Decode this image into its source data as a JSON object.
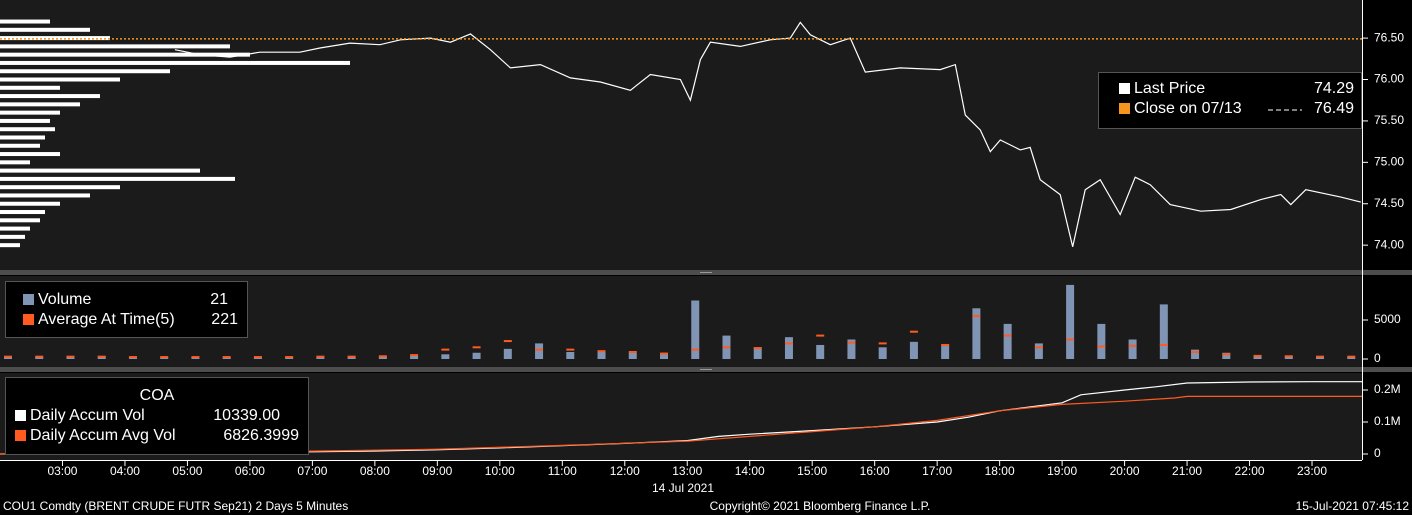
{
  "chart_data": [
    {
      "type": "line",
      "xlim": [
        2,
        23.8
      ],
      "ylim": [
        73.7,
        76.96
      ],
      "yticks": [
        {
          "value": 76.5,
          "label": "76.50"
        },
        {
          "value": 76,
          "label": "76.00"
        },
        {
          "value": 75.5,
          "label": "75.50"
        },
        {
          "value": 75,
          "label": "75.00"
        },
        {
          "value": 74.5,
          "label": "74.50"
        },
        {
          "value": 74,
          "label": "74.00"
        }
      ],
      "series": [
        {
          "name": "Last Price",
          "color": "#ffffff",
          "legend_value": 74.29,
          "x": [
            4.8,
            5.2,
            5.68,
            6.16,
            6.8,
            7.12,
            7.6,
            8.08,
            8.41,
            8.89,
            9.21,
            9.53,
            9.85,
            10.17,
            10.65,
            11.13,
            11.61,
            12.09,
            12.41,
            12.89,
            13.05,
            13.21,
            13.37,
            13.85,
            14.33,
            14.65,
            14.81,
            14.97,
            15.29,
            15.61,
            15.85,
            16.41,
            17.05,
            17.29,
            17.45,
            17.69,
            17.85,
            18.01,
            18.33,
            18.49,
            18.65,
            18.97,
            19.17,
            19.37,
            19.61,
            19.93,
            20.17,
            20.41,
            20.73,
            21.22,
            21.7,
            22.18,
            22.5,
            22.66,
            22.9,
            23.46,
            23.78
          ],
          "values": [
            76.36,
            76.3,
            76.27,
            76.33,
            76.33,
            76.38,
            76.44,
            76.42,
            76.48,
            76.5,
            76.45,
            76.55,
            76.36,
            76.14,
            76.18,
            76.02,
            75.97,
            75.87,
            76.06,
            76.0,
            75.75,
            76.24,
            76.45,
            76.4,
            76.48,
            76.5,
            76.69,
            76.54,
            76.42,
            76.5,
            76.09,
            76.14,
            76.12,
            76.18,
            75.57,
            75.39,
            75.13,
            75.27,
            75.15,
            75.18,
            74.79,
            74.61,
            73.98,
            74.67,
            74.79,
            74.37,
            74.82,
            74.73,
            74.49,
            74.41,
            74.43,
            74.55,
            74.61,
            74.49,
            74.67,
            74.58,
            74.52
          ]
        },
        {
          "name": "Close on 07/13",
          "color": "#f7941d",
          "values": [
            76.49
          ]
        }
      ],
      "profile": {
        "color": "#ffffff",
        "prices": [
          76.7,
          76.6,
          76.5,
          76.4,
          76.3,
          76.2,
          76.1,
          76.0,
          75.9,
          75.8,
          75.7,
          75.6,
          75.5,
          75.4,
          75.3,
          75.2,
          75.1,
          75.0,
          74.9,
          74.8,
          74.7,
          74.6,
          74.5,
          74.4,
          74.3,
          74.2,
          74.1,
          74.0
        ],
        "values": [
          50,
          90,
          110,
          230,
          250,
          350,
          170,
          120,
          60,
          100,
          80,
          60,
          50,
          55,
          45,
          40,
          60,
          30,
          200,
          235,
          120,
          90,
          60,
          45,
          40,
          30,
          25,
          20
        ]
      }
    },
    {
      "type": "bar",
      "xlim": [
        2,
        23.8
      ],
      "ylim": [
        0,
        10000
      ],
      "yticks": [
        5000,
        0
      ],
      "x": [
        2,
        2.5,
        3,
        3.5,
        4,
        4.5,
        5,
        5.5,
        6,
        6.5,
        7,
        7.5,
        8,
        8.5,
        9,
        9.5,
        10,
        10.5,
        11,
        11.5,
        12,
        12.5,
        13,
        13.5,
        14,
        14.5,
        15,
        15.5,
        16,
        16.5,
        17,
        17.5,
        18,
        18.5,
        19,
        19.5,
        20,
        20.5,
        21,
        21.5,
        22,
        22.5,
        23,
        23.5
      ],
      "series": [
        {
          "name": "Volume",
          "color": "#8094b4",
          "legend_value": 21,
          "values": [
            200,
            250,
            300,
            350,
            300,
            250,
            300,
            250,
            250,
            250,
            300,
            300,
            350,
            400,
            600,
            800,
            1300,
            2000,
            900,
            1100,
            800,
            700,
            7500,
            3000,
            1500,
            2800,
            1800,
            2500,
            1500,
            2200,
            1800,
            6500,
            4500,
            2000,
            9500,
            4500,
            2500,
            7000,
            1200,
            800,
            500,
            400,
            300,
            200
          ]
        },
        {
          "name": "Average At Time(5)",
          "color": "#ff5a1f",
          "legend_value": 221,
          "values": [
            300,
            300,
            300,
            300,
            250,
            250,
            250,
            250,
            250,
            250,
            300,
            300,
            350,
            500,
            1200,
            1500,
            2300,
            1200,
            1200,
            1000,
            900,
            700,
            1200,
            1500,
            1400,
            2000,
            3000,
            2100,
            2000,
            3500,
            1800,
            5500,
            3000,
            1500,
            2500,
            1600,
            1700,
            1800,
            900,
            600,
            400,
            350,
            300,
            300
          ]
        }
      ]
    },
    {
      "type": "line",
      "title": "COA",
      "xlim": [
        2,
        23.8
      ],
      "ylim": [
        0,
        225000
      ],
      "yticks": [
        {
          "value": 200000,
          "label": "0.2M"
        },
        {
          "value": 100000,
          "label": "0.1M"
        },
        0
      ],
      "xticks": [
        {
          "value": 3,
          "label": "03:00"
        },
        {
          "value": 4,
          "label": "04:00"
        },
        {
          "value": 5,
          "label": "05:00"
        },
        {
          "value": 6,
          "label": "06:00"
        },
        {
          "value": 7,
          "label": "07:00"
        },
        {
          "value": 8,
          "label": "08:00"
        },
        {
          "value": 9,
          "label": "09:00"
        },
        {
          "value": 10,
          "label": "10:00"
        },
        {
          "value": 11,
          "label": "11:00"
        },
        {
          "value": 12,
          "label": "12:00"
        },
        {
          "value": 13,
          "label": "13:00"
        },
        {
          "value": 14,
          "label": "14:00"
        },
        {
          "value": 15,
          "label": "15:00"
        },
        {
          "value": 16,
          "label": "16:00"
        },
        {
          "value": 17,
          "label": "17:00"
        },
        {
          "value": 18,
          "label": "18:00"
        },
        {
          "value": 19,
          "label": "19:00"
        },
        {
          "value": 20,
          "label": "20:00"
        },
        {
          "value": 21,
          "label": "21:00"
        },
        {
          "value": 22,
          "label": "22:00"
        },
        {
          "value": 23,
          "label": "23:00"
        }
      ],
      "x_label": "14 Jul 2021",
      "series": [
        {
          "name": "Daily Accum Vol",
          "color": "#ffffff",
          "legend_value": "10339.00",
          "x": [
            2,
            3,
            4,
            5,
            6,
            7,
            8,
            9,
            10,
            11,
            12,
            13,
            13.5,
            14,
            15,
            16,
            17,
            17.5,
            18,
            19,
            19.3,
            20,
            20.5,
            21,
            22,
            23,
            23.8
          ],
          "values": [
            0,
            1000,
            2500,
            4000,
            5500,
            7000,
            9500,
            13000,
            19000,
            26000,
            33000,
            42000,
            55000,
            62000,
            73000,
            85000,
            100000,
            115000,
            135000,
            160000,
            185000,
            200000,
            210000,
            222000,
            225000,
            226000,
            226000
          ]
        },
        {
          "name": "Daily Accum Avg Vol",
          "color": "#ff5a1f",
          "legend_value": "6826.3999",
          "x": [
            2,
            3,
            5,
            7,
            9,
            11,
            13,
            15,
            16,
            17,
            18,
            19,
            20,
            20.8,
            21,
            22,
            23.8
          ],
          "values": [
            0,
            1500,
            5000,
            9000,
            15000,
            27000,
            40000,
            70000,
            85000,
            105000,
            135000,
            155000,
            165000,
            175000,
            180000,
            180000,
            180000
          ]
        }
      ]
    }
  ],
  "footer": {
    "left": "COU1 Comdty (BRENT CRUDE FUTR  Sep21) 2 Days 5 Minutes",
    "center": "Copyright© 2021 Bloomberg Finance L.P.",
    "right": "15-Jul-2021 07:45:12"
  }
}
